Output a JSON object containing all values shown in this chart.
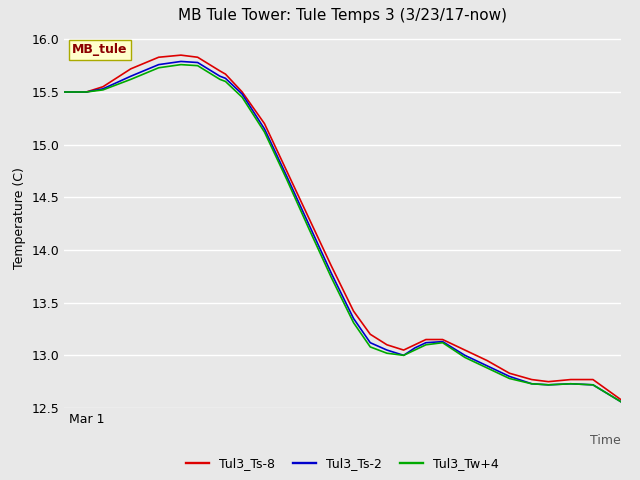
{
  "title": "MB Tule Tower: Tule Temps 3 (3/23/17-now)",
  "xlabel": "Time",
  "ylabel": "Temperature (C)",
  "xlim": [
    0,
    1
  ],
  "ylim": [
    12.5,
    16.1
  ],
  "yticks": [
    12.5,
    13.0,
    13.5,
    14.0,
    14.5,
    15.0,
    15.5,
    16.0
  ],
  "x_tick_labels": [
    "Mar 1"
  ],
  "x_tick_positions": [
    0.04
  ],
  "fig_bg_color": "#e8e8e8",
  "plot_bg_color": "#e8e8e8",
  "grid_color": "#ffffff",
  "legend_label": "MB_tule",
  "legend_text_color": "#8b0000",
  "legend_bg": "#ffffcc",
  "legend_border": "#aaaa00",
  "series": [
    {
      "label": "Tul3_Ts-8",
      "color": "#dd0000",
      "x": [
        0.0,
        0.04,
        0.07,
        0.12,
        0.17,
        0.21,
        0.24,
        0.28,
        0.29,
        0.32,
        0.36,
        0.4,
        0.44,
        0.48,
        0.52,
        0.55,
        0.58,
        0.61,
        0.63,
        0.65,
        0.68,
        0.72,
        0.76,
        0.8,
        0.84,
        0.87,
        0.91,
        0.95,
        1.0
      ],
      "y": [
        15.5,
        15.5,
        15.55,
        15.72,
        15.83,
        15.85,
        15.83,
        15.7,
        15.67,
        15.5,
        15.2,
        14.75,
        14.3,
        13.85,
        13.42,
        13.2,
        13.1,
        13.05,
        13.1,
        13.15,
        13.15,
        13.05,
        12.95,
        12.83,
        12.77,
        12.75,
        12.77,
        12.77,
        12.58
      ]
    },
    {
      "label": "Tul3_Ts-2",
      "color": "#0000cc",
      "x": [
        0.0,
        0.04,
        0.07,
        0.12,
        0.17,
        0.21,
        0.24,
        0.28,
        0.29,
        0.32,
        0.36,
        0.4,
        0.44,
        0.48,
        0.52,
        0.55,
        0.58,
        0.61,
        0.63,
        0.65,
        0.68,
        0.72,
        0.76,
        0.8,
        0.84,
        0.87,
        0.91,
        0.95,
        1.0
      ],
      "y": [
        15.5,
        15.5,
        15.53,
        15.65,
        15.76,
        15.79,
        15.78,
        15.65,
        15.63,
        15.48,
        15.15,
        14.7,
        14.24,
        13.78,
        13.35,
        13.12,
        13.05,
        13.0,
        13.07,
        13.12,
        13.13,
        13.0,
        12.9,
        12.8,
        12.73,
        12.72,
        12.73,
        12.72,
        12.56
      ]
    },
    {
      "label": "Tul3_Tw+4",
      "color": "#00aa00",
      "x": [
        0.0,
        0.04,
        0.07,
        0.12,
        0.17,
        0.21,
        0.24,
        0.28,
        0.29,
        0.32,
        0.36,
        0.4,
        0.44,
        0.48,
        0.52,
        0.55,
        0.58,
        0.61,
        0.63,
        0.65,
        0.68,
        0.72,
        0.76,
        0.8,
        0.84,
        0.87,
        0.91,
        0.95,
        1.0
      ],
      "y": [
        15.5,
        15.5,
        15.52,
        15.62,
        15.73,
        15.76,
        15.75,
        15.62,
        15.6,
        15.45,
        15.12,
        14.67,
        14.2,
        13.74,
        13.31,
        13.08,
        13.02,
        13.0,
        13.05,
        13.1,
        13.12,
        12.98,
        12.88,
        12.78,
        12.73,
        12.72,
        12.73,
        12.72,
        12.56
      ]
    }
  ],
  "title_fontsize": 11,
  "axis_label_fontsize": 9,
  "tick_fontsize": 9,
  "legend_fontsize": 9,
  "line_width": 1.2
}
